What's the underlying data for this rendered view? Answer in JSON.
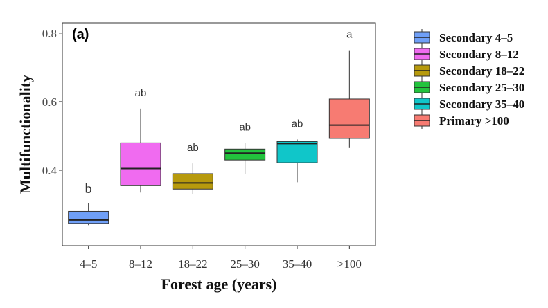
{
  "chart_data": {
    "type": "box",
    "panel_label": "(a)",
    "xlabel": "Forest age (years)",
    "ylabel": "Multifunctionality",
    "ylim": [
      0.18,
      0.83
    ],
    "yticks": [
      {
        "value": 0.4,
        "label": "0.4"
      },
      {
        "value": 0.6,
        "label": "0.6"
      },
      {
        "value": 0.8,
        "label": "0.8"
      }
    ],
    "categories": [
      "4–5",
      "8–12",
      "18–22",
      "25–30",
      "35–40",
      ">100"
    ],
    "series": [
      {
        "name": "Secondary 4–5",
        "color": "#6f9ff7",
        "min": 0.24,
        "q1": 0.245,
        "median": 0.255,
        "q3": 0.28,
        "max": 0.305,
        "letter": "b"
      },
      {
        "name": "Secondary 8–12",
        "color": "#f06bf0",
        "min": 0.335,
        "q1": 0.355,
        "median": 0.405,
        "q3": 0.48,
        "max": 0.58,
        "letter": "ab"
      },
      {
        "name": "Secondary 18–22",
        "color": "#b79a0d",
        "min": 0.33,
        "q1": 0.345,
        "median": 0.363,
        "q3": 0.39,
        "max": 0.42,
        "letter": "ab"
      },
      {
        "name": "Secondary 25–30",
        "color": "#22c33d",
        "min": 0.39,
        "q1": 0.43,
        "median": 0.45,
        "q3": 0.462,
        "max": 0.48,
        "letter": "ab"
      },
      {
        "name": "Secondary 35–40",
        "color": "#10c6c9",
        "min": 0.365,
        "q1": 0.422,
        "median": 0.478,
        "q3": 0.484,
        "max": 0.49,
        "letter": "ab"
      },
      {
        "name": "Primary >100",
        "color": "#f77b72",
        "min": 0.465,
        "q1": 0.493,
        "median": 0.532,
        "q3": 0.608,
        "max": 0.75,
        "letter": "a"
      }
    ],
    "legend": {
      "position": "right"
    },
    "grid": false
  }
}
